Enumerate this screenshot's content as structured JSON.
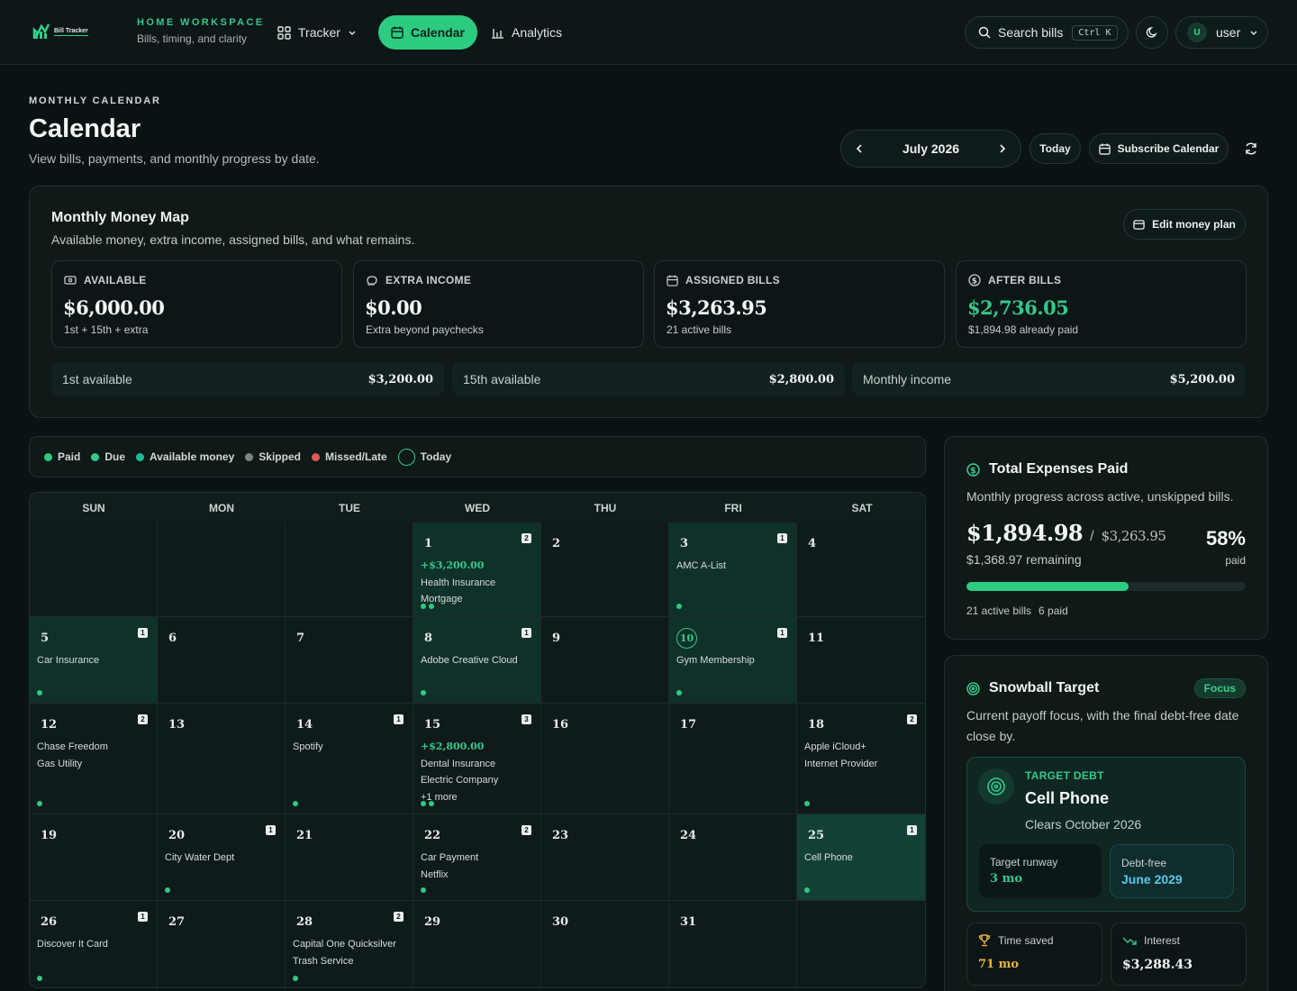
{
  "header": {
    "logo_text": "Bill Tracker",
    "workspace_title": "HOME WORKSPACE",
    "workspace_sub": "Bills, timing, and clarity",
    "nav": {
      "tracker": "Tracker",
      "calendar": "Calendar",
      "analytics": "Analytics"
    },
    "search_label": "Search bills",
    "search_kbd": "Ctrl K",
    "user_initial": "U",
    "user_name": "user"
  },
  "page": {
    "eyebrow": "MONTHLY CALENDAR",
    "title": "Calendar",
    "subtitle": "View bills, payments, and monthly progress by date.",
    "month": "July 2026",
    "today_label": "Today",
    "subscribe_label": "Subscribe Calendar"
  },
  "money_map": {
    "title": "Monthly Money Map",
    "subtitle": "Available money, extra income, assigned bills, and what remains.",
    "edit_label": "Edit money plan",
    "cards": [
      {
        "label": "AVAILABLE",
        "value": "$6,000.00",
        "note": "1st + 15th + extra"
      },
      {
        "label": "EXTRA INCOME",
        "value": "$0.00",
        "note": "Extra beyond paychecks"
      },
      {
        "label": "ASSIGNED BILLS",
        "value": "$3,263.95",
        "note": "21 active bills"
      },
      {
        "label": "AFTER BILLS",
        "value": "$2,736.05",
        "note": "$1,894.98 already paid"
      }
    ],
    "strips": [
      {
        "label": "1st available",
        "value": "$3,200.00"
      },
      {
        "label": "15th available",
        "value": "$2,800.00"
      },
      {
        "label": "Monthly income",
        "value": "$5,200.00"
      }
    ]
  },
  "legend": [
    "Paid",
    "Due",
    "Available money",
    "Skipped",
    "Missed/Late",
    "Today"
  ],
  "colors": {
    "accent": "#2dcb7f",
    "paid": "#2dcb7f",
    "due": "#35c88b",
    "available": "#1fb89a",
    "skipped": "#7a8684",
    "missed": "#e05a5a"
  },
  "calendar": {
    "weekdays": [
      "SUN",
      "MON",
      "TUE",
      "WED",
      "THU",
      "FRI",
      "SAT"
    ],
    "days": {
      "1": {
        "count": "2",
        "income": "+$3,200.00",
        "items": [
          "Health Insurance",
          "Mortgage"
        ]
      },
      "2": {},
      "3": {
        "count": "1",
        "items": [
          "AMC A-List"
        ]
      },
      "4": {},
      "5": {
        "count": "1",
        "items": [
          "Car Insurance"
        ]
      },
      "6": {},
      "7": {},
      "8": {
        "count": "1",
        "items": [
          "Adobe Creative Cloud"
        ]
      },
      "9": {},
      "10": {
        "count": "1",
        "items": [
          "Gym Membership"
        ]
      },
      "11": {},
      "12": {
        "count": "2",
        "items": [
          "Chase Freedom",
          "Gas Utility"
        ]
      },
      "13": {},
      "14": {
        "count": "1",
        "items": [
          "Spotify"
        ]
      },
      "15": {
        "count": "3",
        "income": "+$2,800.00",
        "items": [
          "Dental Insurance",
          "Electric Company",
          "+1 more"
        ]
      },
      "16": {},
      "17": {},
      "18": {
        "count": "2",
        "items": [
          "Apple iCloud+",
          "Internet Provider"
        ]
      },
      "19": {},
      "20": {
        "count": "1",
        "items": [
          "City Water Dept"
        ]
      },
      "21": {},
      "22": {
        "count": "2",
        "items": [
          "Car Payment",
          "Netflix"
        ]
      },
      "23": {},
      "24": {},
      "25": {
        "count": "1",
        "items": [
          "Cell Phone"
        ]
      },
      "26": {
        "count": "1",
        "items": [
          "Discover It Card"
        ]
      },
      "27": {},
      "28": {
        "count": "2",
        "items": [
          "Capital One Quicksilver",
          "Trash Service"
        ]
      },
      "29": {},
      "30": {},
      "31": {}
    }
  },
  "expenses": {
    "title": "Total Expenses Paid",
    "subtitle": "Monthly progress across active, unskipped bills.",
    "paid": "$1,894.98",
    "separator": "/",
    "total": "$3,263.95",
    "remaining": "$1,368.97 remaining",
    "percent": "58%",
    "percent_label": "paid",
    "progress": 0.58,
    "active": "21 active bills",
    "paid_count": "6 paid"
  },
  "snowball": {
    "title": "Snowball Target",
    "badge": "Focus",
    "subtitle": "Current payoff focus, with the final debt-free date close by.",
    "target_label": "TARGET DEBT",
    "target_name": "Cell Phone",
    "clears": "Clears October 2026",
    "runway_label": "Target runway",
    "runway_value": "3 mo",
    "debtfree_label": "Debt-free",
    "debtfree_value": "June 2029",
    "time_saved_label": "Time saved",
    "time_saved_value": "71 mo",
    "interest_label": "Interest",
    "interest_value": "$3,288.43"
  }
}
